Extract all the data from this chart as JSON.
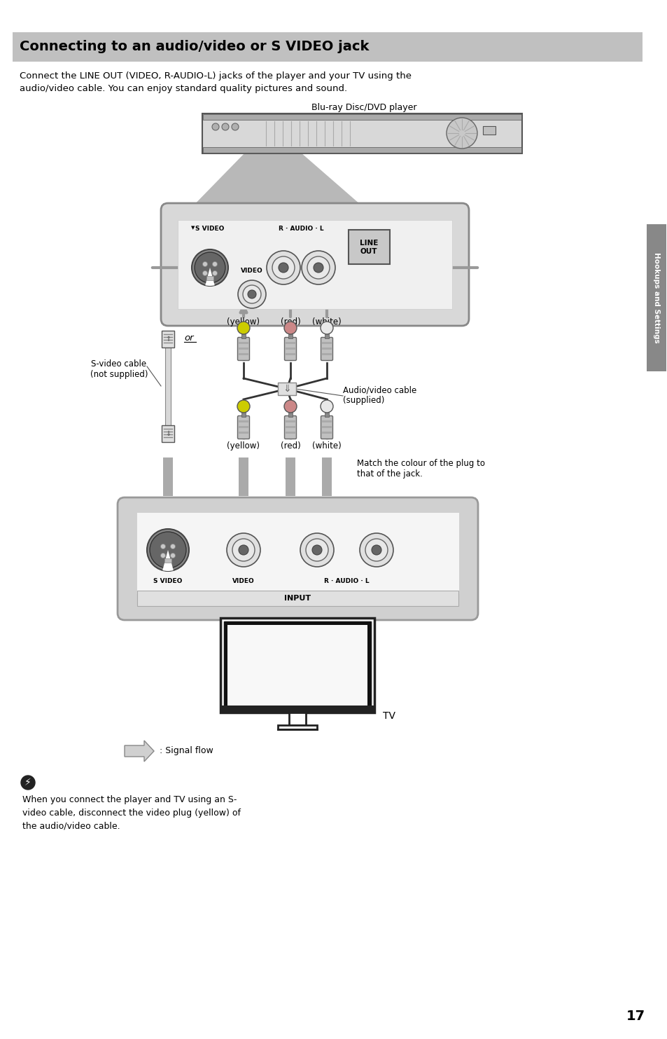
{
  "title": "Connecting to an audio/video or S VIDEO jack",
  "title_bg": "#c0c0c0",
  "page_bg": "#ffffff",
  "intro_text": "Connect the LINE OUT (VIDEO, R-AUDIO-L) jacks of the player and your TV using the\naudio/video cable. You can enjoy standard quality pictures and sound.",
  "player_label": "Blu-ray Disc/DVD player",
  "tv_label": "TV",
  "signal_flow_label": ": Signal flow",
  "line_out_label": "LINE\nOUT",
  "input_label": "INPUT",
  "s_video_label_top": "S VIDEO",
  "video_label_top": "VIDEO",
  "r_audio_l_label_top": "R · AUDIO · L",
  "or_label": "or",
  "yellow_top": "(yellow)",
  "red_top": "(red)",
  "white_top": "(white)",
  "yellow_bot": "(yellow)",
  "red_bot": "(red)",
  "white_bot": "(white)",
  "s_video_cable_label": "S-video cable\n(not supplied)",
  "av_cable_label": "Audio/video cable\n(supplied)",
  "match_colour_label": "Match the colour of the plug to\nthat of the jack.",
  "hookups_label": "Hookups and Settings",
  "page_number": "17",
  "note_text": "When you connect the player and TV using an S-\nvideo cable, disconnect the video plug (yellow) of\nthe audio/video cable.",
  "s_video_label_bot": "S VIDEO",
  "video_label_bot": "VIDEO",
  "r_audio_l_label_bot": "R · AUDIO · L"
}
